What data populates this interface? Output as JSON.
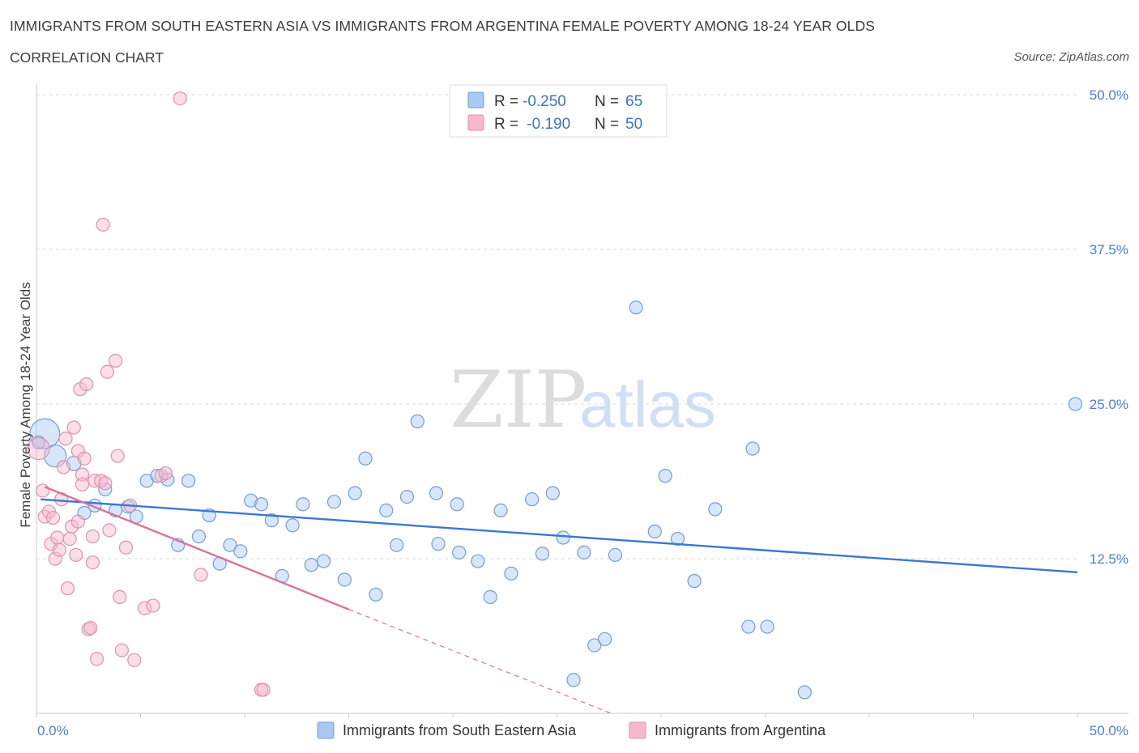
{
  "header": {
    "title": "IMMIGRANTS FROM SOUTH EASTERN ASIA VS IMMIGRANTS FROM ARGENTINA FEMALE POVERTY AMONG 18-24 YEAR OLDS",
    "subtitle": "CORRELATION CHART",
    "source": "Source: ZipAtlas.com"
  },
  "colors": {
    "blue_fill": "#a9c8f2",
    "blue_stroke": "#6f9fdc",
    "blue_line": "#3a78d4",
    "pink_fill": "#f5b8cc",
    "pink_stroke": "#e58fac",
    "pink_line": "#e0709a",
    "grid": "#d9d9d9",
    "axis_text": "#4a7fd4"
  },
  "watermark": {
    "part1": "ZIP",
    "part2": "atlas"
  },
  "legend": {
    "rows": [
      {
        "r_label": "R = ",
        "r_value": "-0.250",
        "n_label": "N = ",
        "n_value": "65"
      },
      {
        "r_label": "R = ",
        "r_value": " -0.190",
        "n_label": "N = ",
        "n_value": "50"
      }
    ]
  },
  "chart_data": {
    "type": "scatter",
    "ylabel": "Female Poverty Among 18-24 Year Olds",
    "xlim": [
      0,
      50
    ],
    "ylim": [
      0,
      50
    ],
    "x_tick_labels": [
      "0.0%",
      "50.0%"
    ],
    "y_ticks": [
      12.5,
      25.0,
      37.5,
      50.0
    ],
    "y_tick_labels": [
      "12.5%",
      "25.0%",
      "37.5%",
      "50.0%"
    ],
    "grid": true,
    "legend_position": "top-center",
    "series": [
      {
        "name": "Immigrants from South Eastern Asia",
        "color": "blue",
        "trend": {
          "x": [
            0.2,
            50.0
          ],
          "y": [
            17.3,
            11.4
          ]
        },
        "points": [
          {
            "x": 0.4,
            "y": 22.6,
            "s": 2.3
          },
          {
            "x": 0.9,
            "y": 20.8,
            "s": 1.7
          },
          {
            "x": 1.8,
            "y": 20.2,
            "s": 1.1
          },
          {
            "x": 2.3,
            "y": 16.2,
            "s": 1
          },
          {
            "x": 2.8,
            "y": 16.8,
            "s": 1
          },
          {
            "x": 3.3,
            "y": 18.1,
            "s": 1
          },
          {
            "x": 3.8,
            "y": 16.4,
            "s": 1
          },
          {
            "x": 4.4,
            "y": 16.7,
            "s": 1
          },
          {
            "x": 4.8,
            "y": 15.9,
            "s": 1
          },
          {
            "x": 5.3,
            "y": 18.8,
            "s": 1
          },
          {
            "x": 5.8,
            "y": 19.2,
            "s": 1
          },
          {
            "x": 6.3,
            "y": 18.9,
            "s": 1
          },
          {
            "x": 6.8,
            "y": 13.6,
            "s": 1
          },
          {
            "x": 7.3,
            "y": 18.8,
            "s": 1
          },
          {
            "x": 7.8,
            "y": 14.3,
            "s": 1
          },
          {
            "x": 8.3,
            "y": 16.0,
            "s": 1
          },
          {
            "x": 8.8,
            "y": 12.1,
            "s": 1
          },
          {
            "x": 9.3,
            "y": 13.6,
            "s": 1
          },
          {
            "x": 9.8,
            "y": 13.1,
            "s": 1
          },
          {
            "x": 10.3,
            "y": 17.2,
            "s": 1
          },
          {
            "x": 10.8,
            "y": 16.9,
            "s": 1
          },
          {
            "x": 11.3,
            "y": 15.6,
            "s": 1
          },
          {
            "x": 11.8,
            "y": 11.1,
            "s": 1
          },
          {
            "x": 12.3,
            "y": 15.2,
            "s": 1
          },
          {
            "x": 12.8,
            "y": 16.9,
            "s": 1
          },
          {
            "x": 13.2,
            "y": 12.0,
            "s": 1
          },
          {
            "x": 13.8,
            "y": 12.3,
            "s": 1
          },
          {
            "x": 14.3,
            "y": 17.1,
            "s": 1
          },
          {
            "x": 14.8,
            "y": 10.8,
            "s": 1
          },
          {
            "x": 15.3,
            "y": 17.8,
            "s": 1
          },
          {
            "x": 15.8,
            "y": 20.6,
            "s": 1
          },
          {
            "x": 16.3,
            "y": 9.6,
            "s": 1
          },
          {
            "x": 16.8,
            "y": 16.4,
            "s": 1
          },
          {
            "x": 17.3,
            "y": 13.6,
            "s": 1
          },
          {
            "x": 17.8,
            "y": 17.5,
            "s": 1
          },
          {
            "x": 18.3,
            "y": 23.6,
            "s": 1
          },
          {
            "x": 19.2,
            "y": 17.8,
            "s": 1
          },
          {
            "x": 19.3,
            "y": 13.7,
            "s": 1
          },
          {
            "x": 20.2,
            "y": 16.9,
            "s": 1
          },
          {
            "x": 20.3,
            "y": 13.0,
            "s": 1
          },
          {
            "x": 21.2,
            "y": 12.3,
            "s": 1
          },
          {
            "x": 21.8,
            "y": 9.4,
            "s": 1
          },
          {
            "x": 22.3,
            "y": 16.4,
            "s": 1
          },
          {
            "x": 22.8,
            "y": 11.3,
            "s": 1
          },
          {
            "x": 23.8,
            "y": 17.3,
            "s": 1
          },
          {
            "x": 24.3,
            "y": 12.9,
            "s": 1
          },
          {
            "x": 24.8,
            "y": 17.8,
            "s": 1
          },
          {
            "x": 25.3,
            "y": 14.2,
            "s": 1
          },
          {
            "x": 25.8,
            "y": 2.7,
            "s": 1
          },
          {
            "x": 26.3,
            "y": 13.0,
            "s": 1
          },
          {
            "x": 26.8,
            "y": 5.5,
            "s": 1
          },
          {
            "x": 27.3,
            "y": 6.0,
            "s": 1
          },
          {
            "x": 27.8,
            "y": 12.8,
            "s": 1
          },
          {
            "x": 28.8,
            "y": 32.8,
            "s": 1
          },
          {
            "x": 29.7,
            "y": 14.7,
            "s": 1
          },
          {
            "x": 30.2,
            "y": 19.2,
            "s": 1
          },
          {
            "x": 30.8,
            "y": 14.1,
            "s": 1
          },
          {
            "x": 31.6,
            "y": 10.7,
            "s": 1
          },
          {
            "x": 32.6,
            "y": 16.5,
            "s": 1
          },
          {
            "x": 34.2,
            "y": 7.0,
            "s": 1
          },
          {
            "x": 34.4,
            "y": 21.4,
            "s": 1
          },
          {
            "x": 35.1,
            "y": 7.0,
            "s": 1
          },
          {
            "x": 36.9,
            "y": 1.7,
            "s": 1
          },
          {
            "x": 49.9,
            "y": 25.0,
            "s": 1
          },
          {
            "x": 0.1,
            "y": 21.9,
            "s": 1
          }
        ]
      },
      {
        "name": "Immigrants from Argentina",
        "color": "pink",
        "trend": {
          "x": [
            0.4,
            15.0
          ],
          "y": [
            18.3,
            8.4
          ]
        },
        "trend_ext": {
          "x": [
            15.0,
            27.6
          ],
          "y": [
            8.4,
            0.0
          ]
        },
        "points": [
          {
            "x": 0.1,
            "y": 21.4,
            "s": 1.7
          },
          {
            "x": 0.3,
            "y": 18.0,
            "s": 1
          },
          {
            "x": 0.4,
            "y": 15.9,
            "s": 1
          },
          {
            "x": 0.6,
            "y": 16.3,
            "s": 1
          },
          {
            "x": 0.7,
            "y": 13.7,
            "s": 1
          },
          {
            "x": 0.8,
            "y": 15.8,
            "s": 1
          },
          {
            "x": 0.9,
            "y": 12.5,
            "s": 1
          },
          {
            "x": 1.0,
            "y": 14.2,
            "s": 1
          },
          {
            "x": 1.1,
            "y": 13.2,
            "s": 1
          },
          {
            "x": 1.2,
            "y": 17.3,
            "s": 1
          },
          {
            "x": 1.3,
            "y": 19.9,
            "s": 1
          },
          {
            "x": 1.4,
            "y": 22.2,
            "s": 1
          },
          {
            "x": 1.5,
            "y": 10.1,
            "s": 1
          },
          {
            "x": 1.6,
            "y": 14.1,
            "s": 1
          },
          {
            "x": 1.7,
            "y": 15.1,
            "s": 1
          },
          {
            "x": 1.8,
            "y": 23.1,
            "s": 1
          },
          {
            "x": 1.9,
            "y": 12.8,
            "s": 1
          },
          {
            "x": 2.0,
            "y": 15.5,
            "s": 1
          },
          {
            "x": 2.0,
            "y": 21.2,
            "s": 1
          },
          {
            "x": 2.1,
            "y": 26.2,
            "s": 1
          },
          {
            "x": 2.2,
            "y": 19.3,
            "s": 1
          },
          {
            "x": 2.2,
            "y": 18.5,
            "s": 1
          },
          {
            "x": 2.3,
            "y": 20.6,
            "s": 1
          },
          {
            "x": 2.4,
            "y": 26.6,
            "s": 1
          },
          {
            "x": 2.5,
            "y": 6.8,
            "s": 1
          },
          {
            "x": 2.6,
            "y": 6.9,
            "s": 1
          },
          {
            "x": 2.7,
            "y": 12.2,
            "s": 1
          },
          {
            "x": 2.7,
            "y": 14.3,
            "s": 1
          },
          {
            "x": 2.8,
            "y": 18.8,
            "s": 1
          },
          {
            "x": 2.9,
            "y": 4.4,
            "s": 1
          },
          {
            "x": 3.1,
            "y": 18.8,
            "s": 1
          },
          {
            "x": 3.2,
            "y": 39.5,
            "s": 1
          },
          {
            "x": 3.3,
            "y": 18.6,
            "s": 1
          },
          {
            "x": 3.4,
            "y": 27.6,
            "s": 1
          },
          {
            "x": 3.5,
            "y": 14.8,
            "s": 1
          },
          {
            "x": 3.8,
            "y": 28.5,
            "s": 1
          },
          {
            "x": 3.9,
            "y": 20.8,
            "s": 1
          },
          {
            "x": 4.0,
            "y": 9.4,
            "s": 1
          },
          {
            "x": 4.1,
            "y": 5.1,
            "s": 1
          },
          {
            "x": 4.3,
            "y": 13.4,
            "s": 1
          },
          {
            "x": 4.5,
            "y": 16.8,
            "s": 1
          },
          {
            "x": 4.7,
            "y": 4.3,
            "s": 1
          },
          {
            "x": 5.2,
            "y": 8.5,
            "s": 1
          },
          {
            "x": 5.6,
            "y": 8.7,
            "s": 1
          },
          {
            "x": 6.0,
            "y": 19.2,
            "s": 1
          },
          {
            "x": 6.2,
            "y": 19.4,
            "s": 1
          },
          {
            "x": 6.9,
            "y": 49.7,
            "s": 1
          },
          {
            "x": 7.9,
            "y": 11.2,
            "s": 1
          },
          {
            "x": 10.8,
            "y": 1.9,
            "s": 1
          },
          {
            "x": 10.9,
            "y": 1.9,
            "s": 1
          }
        ]
      }
    ]
  },
  "bottom_legend": [
    {
      "label": "Immigrants from South Eastern Asia",
      "color": "blue"
    },
    {
      "label": "Immigrants from Argentina",
      "color": "pink"
    }
  ]
}
